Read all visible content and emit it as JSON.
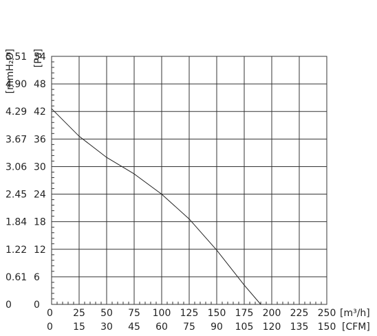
{
  "chart_data": {
    "type": "line",
    "title": "",
    "grid": true,
    "x_axes": [
      {
        "unit_label": "[m³/h]",
        "ticks": [
          "0",
          "25",
          "50",
          "75",
          "100",
          "125",
          "150",
          "175",
          "200",
          "225",
          "250"
        ],
        "range": [
          0,
          250
        ]
      },
      {
        "unit_label": "[CFM]",
        "ticks": [
          "0",
          "15",
          "30",
          "45",
          "60",
          "75",
          "90",
          "105",
          "120",
          "135",
          "150"
        ],
        "range": [
          0,
          150
        ]
      }
    ],
    "y_axes": [
      {
        "unit_label": "[mmH₂O]",
        "ticks": [
          "0",
          "0.61",
          "1.22",
          "1.84",
          "2.45",
          "3.06",
          "3.67",
          "4.29",
          "4.90",
          "5.51"
        ],
        "range": [
          0,
          5.51
        ]
      },
      {
        "unit_label": "[Pa]",
        "ticks": [
          "0",
          "6",
          "12",
          "18",
          "24",
          "30",
          "36",
          "42",
          "48",
          "54"
        ],
        "range": [
          0,
          54
        ]
      }
    ],
    "series": [
      {
        "color": "#222222",
        "x": [
          0,
          25,
          50,
          75,
          100,
          125,
          150,
          175,
          190
        ],
        "y": [
          42.6,
          36.6,
          32.0,
          28.4,
          24.0,
          18.6,
          11.8,
          4.2,
          0
        ]
      }
    ]
  }
}
